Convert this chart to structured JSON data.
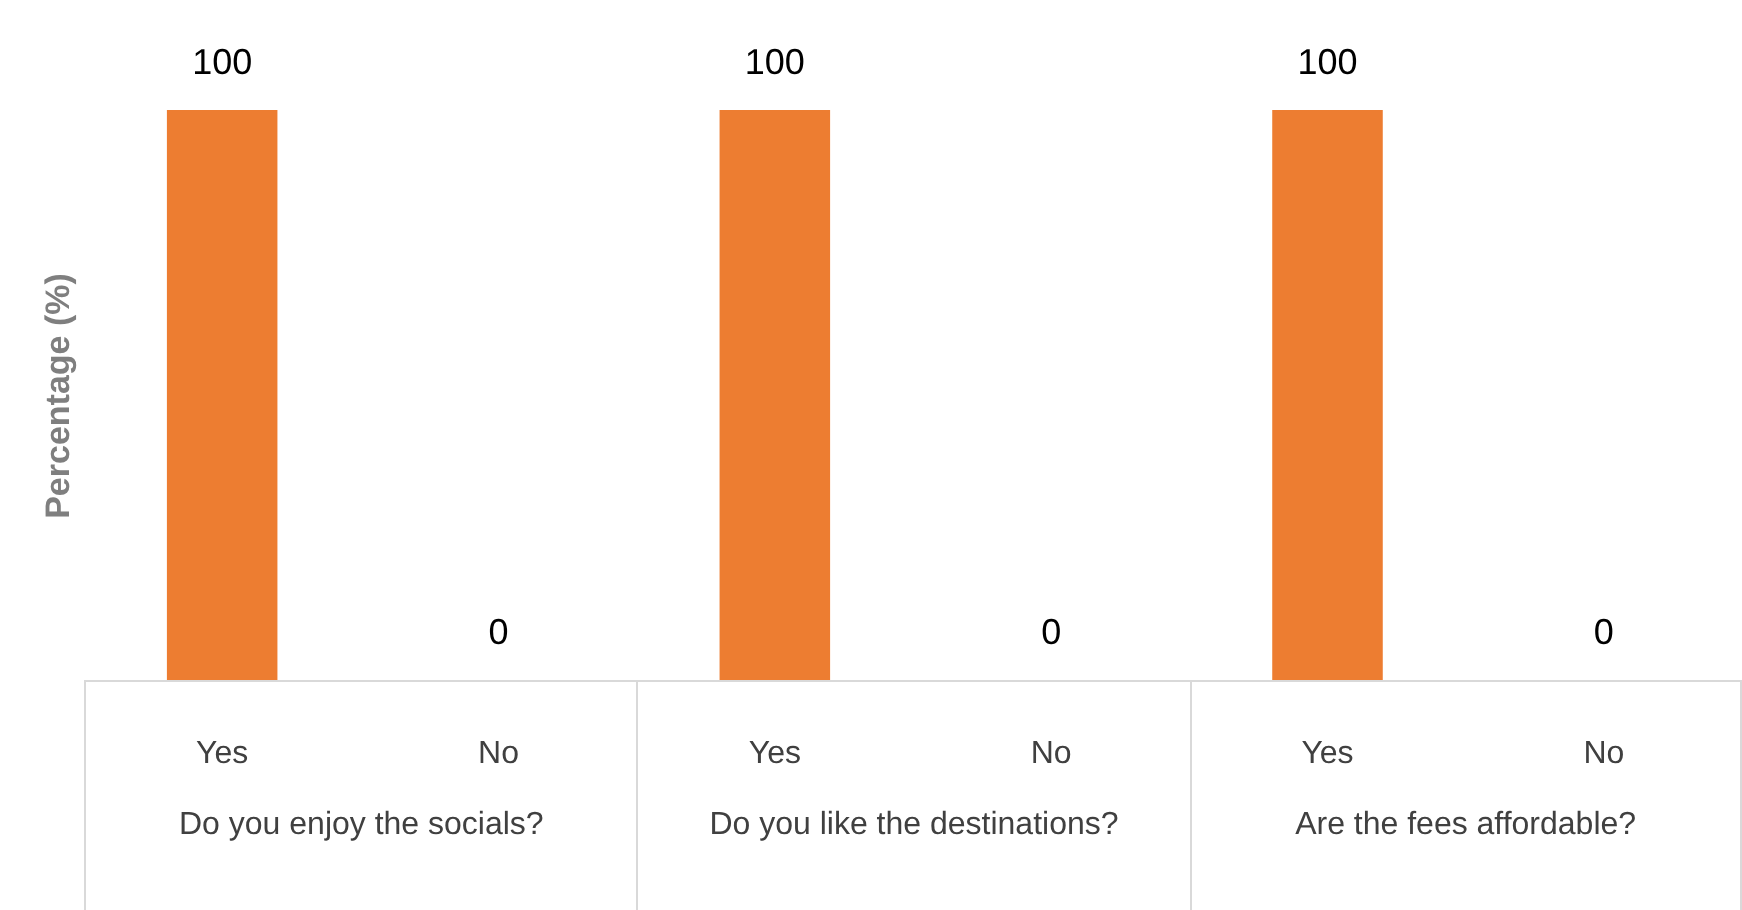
{
  "chart_data": {
    "type": "bar",
    "ylabel": "Percentage (%)",
    "categories": [
      "Yes",
      "No",
      "Yes",
      "No",
      "Yes",
      "No"
    ],
    "values": [
      100,
      0,
      100,
      0,
      100,
      0
    ],
    "color": "#ed7d31",
    "data_labels": true,
    "ylim": [
      0,
      100
    ],
    "annotations": [
      "Do you enjoy the socials?",
      "Do you like the destinations?",
      "Are the fees affordable?"
    ]
  }
}
